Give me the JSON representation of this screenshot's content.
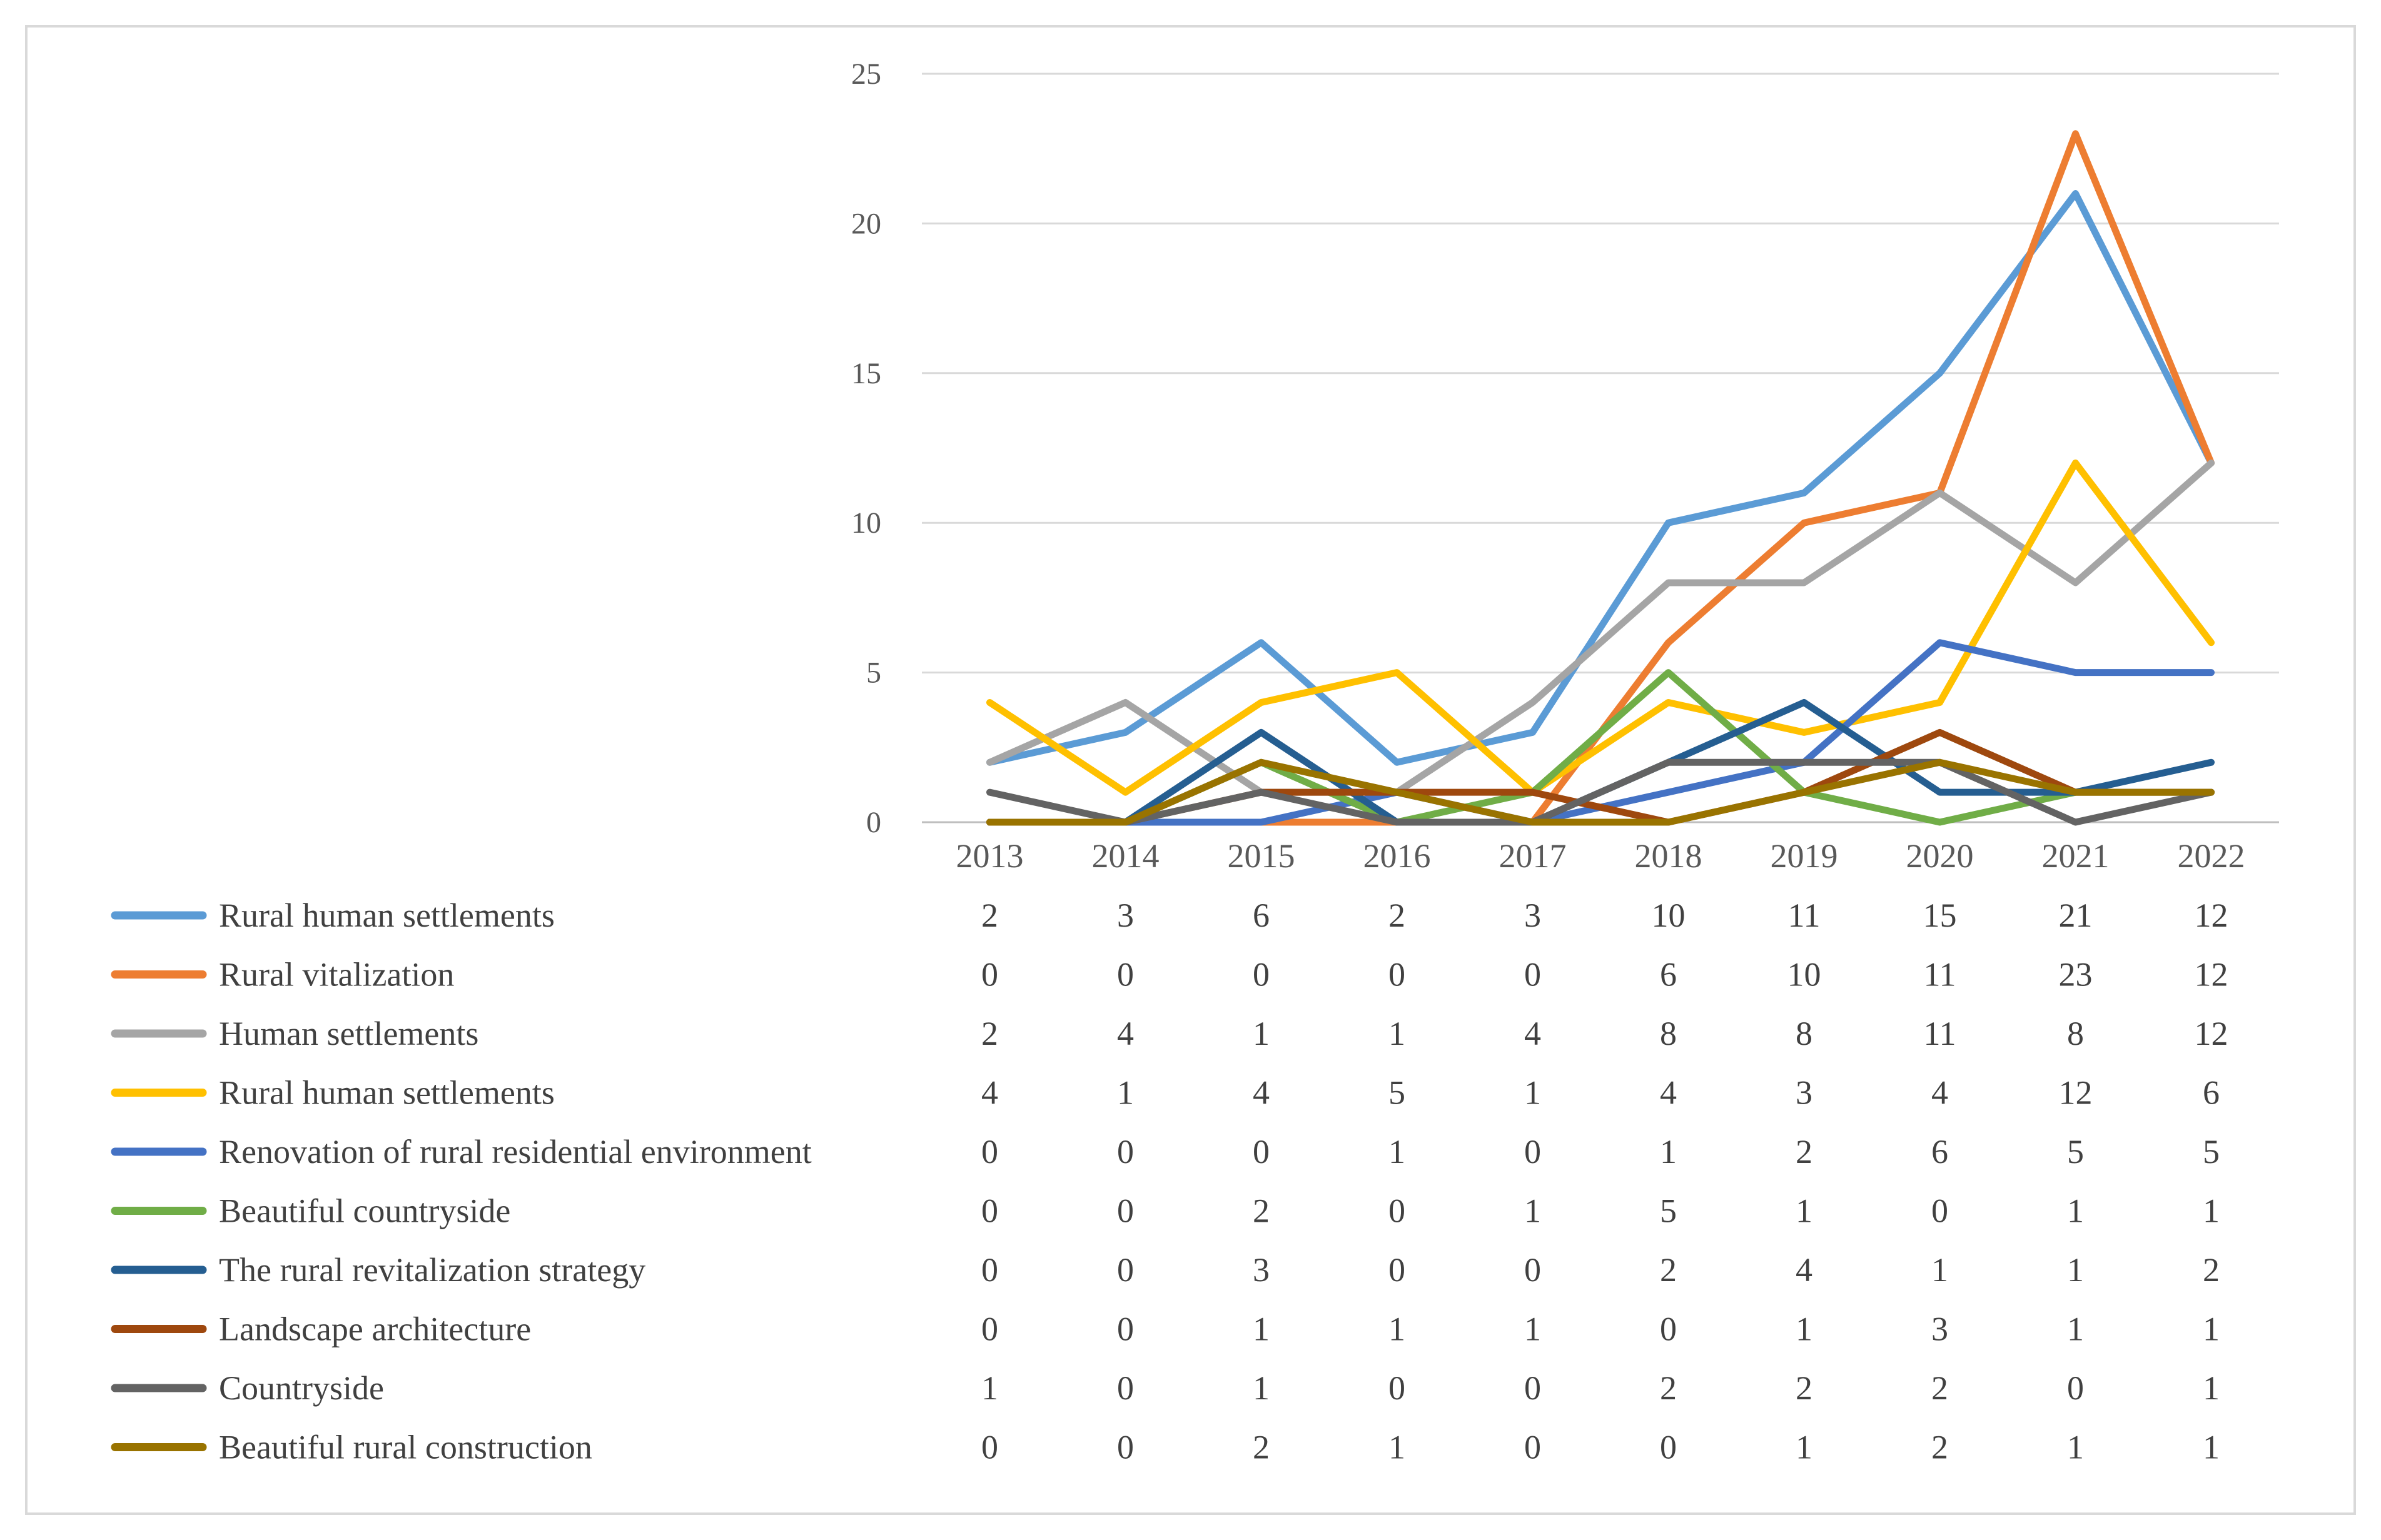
{
  "chart_data": {
    "type": "line",
    "title": "",
    "xlabel": "",
    "ylabel": "",
    "ylim": [
      0,
      25
    ],
    "yticks": [
      "0",
      "5",
      "10",
      "15",
      "20",
      "25"
    ],
    "grid": true,
    "legend": "data-table-bottom",
    "categories": [
      "2013",
      "2014",
      "2015",
      "2016",
      "2017",
      "2018",
      "2019",
      "2020",
      "2021",
      "2022"
    ],
    "series": [
      {
        "name": "Rural human settlements",
        "color": "#5b9bd5",
        "values": [
          2,
          3,
          6,
          2,
          3,
          10,
          11,
          15,
          21,
          12
        ]
      },
      {
        "name": "Rural vitalization",
        "color": "#ed7d31",
        "values": [
          0,
          0,
          0,
          0,
          0,
          6,
          10,
          11,
          23,
          12
        ]
      },
      {
        "name": "Human settlements",
        "color": "#a5a5a5",
        "values": [
          2,
          4,
          1,
          1,
          4,
          8,
          8,
          11,
          8,
          12
        ]
      },
      {
        "name": "Rural human settlements",
        "color": "#ffc000",
        "values": [
          4,
          1,
          4,
          5,
          1,
          4,
          3,
          4,
          12,
          6
        ]
      },
      {
        "name": "Renovation of rural residential environment",
        "color": "#4472c4",
        "values": [
          0,
          0,
          0,
          1,
          0,
          1,
          2,
          6,
          5,
          5
        ]
      },
      {
        "name": "Beautiful countryside",
        "color": "#70ad47",
        "values": [
          0,
          0,
          2,
          0,
          1,
          5,
          1,
          0,
          1,
          1
        ]
      },
      {
        "name": "The rural revitalization strategy",
        "color": "#255e91",
        "values": [
          0,
          0,
          3,
          0,
          0,
          2,
          4,
          1,
          1,
          2
        ]
      },
      {
        "name": "Landscape architecture",
        "color": "#9e480e",
        "values": [
          0,
          0,
          1,
          1,
          1,
          0,
          1,
          3,
          1,
          1
        ]
      },
      {
        "name": "Countryside",
        "color": "#636363",
        "values": [
          1,
          0,
          1,
          0,
          0,
          2,
          2,
          2,
          0,
          1
        ]
      },
      {
        "name": "Beautiful rural construction",
        "color": "#997300",
        "values": [
          0,
          0,
          2,
          1,
          0,
          0,
          1,
          2,
          1,
          1
        ]
      }
    ]
  }
}
